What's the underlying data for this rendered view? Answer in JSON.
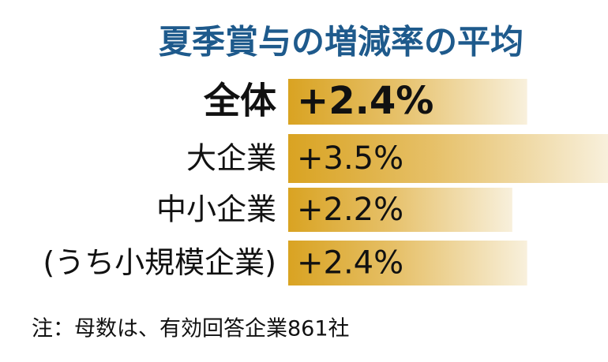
{
  "chart_data": {
    "type": "bar",
    "orientation": "horizontal",
    "title": "夏季賞与の増減率の平均",
    "categories": [
      "全体",
      "大企業",
      "中小企業",
      "(うち小規模企業)"
    ],
    "values": [
      2.4,
      3.5,
      2.2,
      2.4
    ],
    "value_labels": [
      "+2.4%",
      "+3.5%",
      "+2.2%",
      "+2.4%"
    ],
    "color": "#d9a322",
    "note": "注：母数は、有効回答企業861社"
  }
}
